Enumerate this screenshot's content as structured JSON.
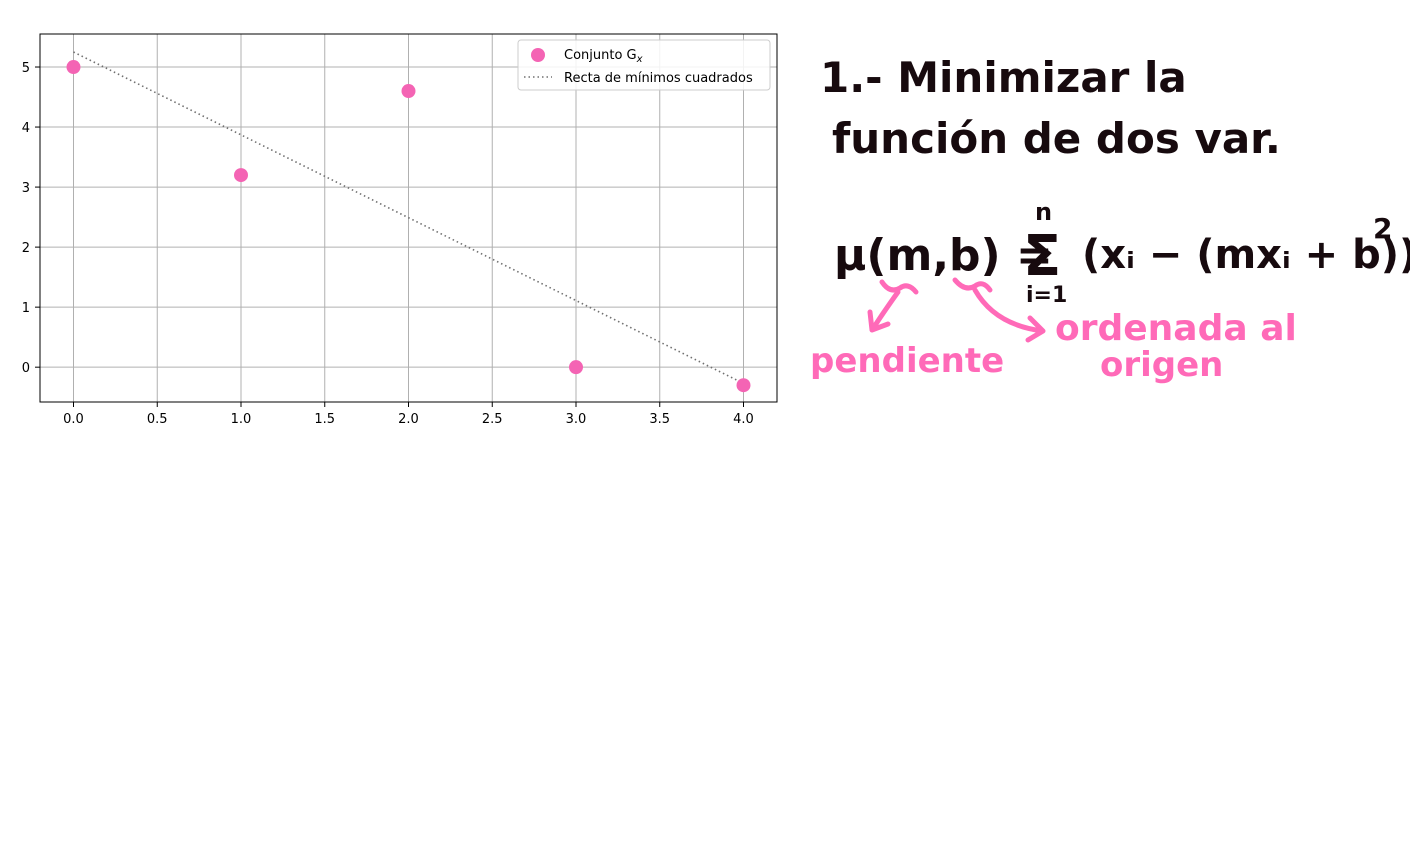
{
  "chart_data": {
    "type": "scatter",
    "x": [
      0,
      1,
      2,
      3,
      4
    ],
    "y": [
      5.0,
      3.2,
      4.6,
      0.0,
      -0.3
    ],
    "xlim": [
      -0.2,
      4.2
    ],
    "ylim": [
      -0.58,
      5.55
    ],
    "xticks": [
      "0.0",
      "0.5",
      "1.0",
      "1.5",
      "2.0",
      "2.5",
      "3.0",
      "3.5",
      "4.0"
    ],
    "yticks": [
      "0",
      "1",
      "2",
      "3",
      "4",
      "5"
    ],
    "grid": true,
    "legend_position": "top-right",
    "series": [
      {
        "name": "Conjunto G",
        "name_subscript": "x",
        "kind": "scatter",
        "color": "#f464b4",
        "x": [
          0,
          1,
          2,
          3,
          4
        ],
        "y": [
          5.0,
          3.2,
          4.6,
          0.0,
          -0.3
        ]
      },
      {
        "name": "Recta de mínimos cuadrados",
        "kind": "line",
        "style": "dotted",
        "color": "#707070",
        "x": [
          0,
          4
        ],
        "y": [
          5.25,
          -0.27
        ]
      }
    ]
  },
  "notes": {
    "step_title_line1": "1.- Minimizar la",
    "step_title_line2": "función de dos var.",
    "formula_lhs": "μ(m,b) =",
    "sum_symbol": "Σ",
    "sum_upper": "n",
    "sum_lower": "i=1",
    "formula_rhs": "(xᵢ − (mxᵢ + b))",
    "exponent": "2",
    "label_slope": "pendiente",
    "label_intercept_line1": "ordenada al",
    "label_intercept_line2": "origen",
    "ink_color": "#170a0e",
    "accent_color": "#ff6ab8"
  }
}
